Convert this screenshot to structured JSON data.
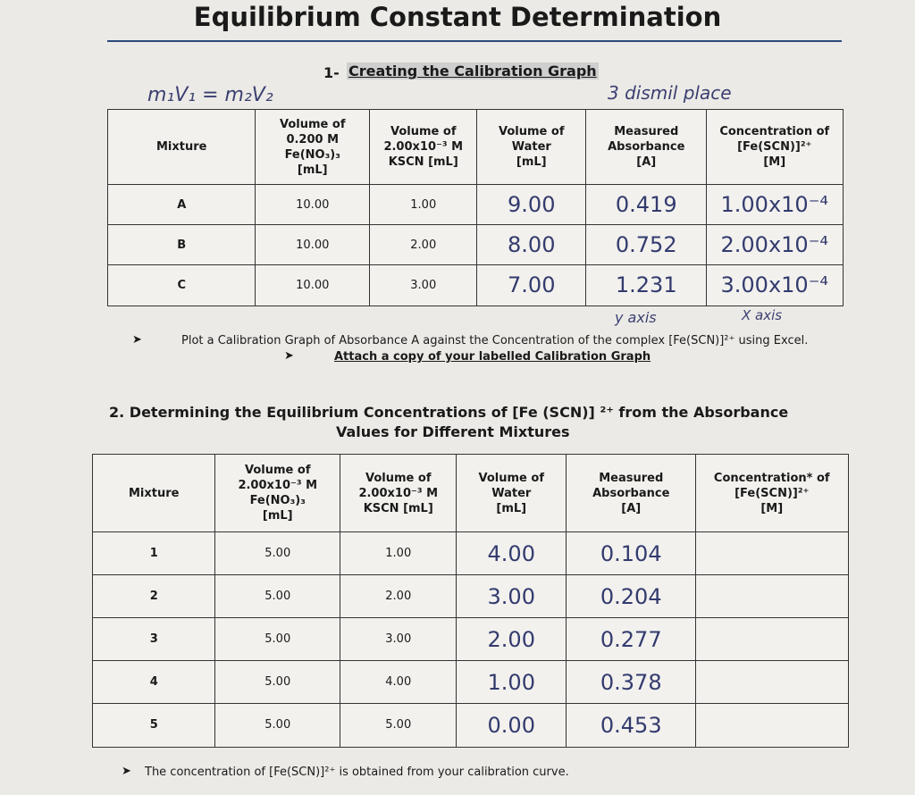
{
  "title": "Equilibrium Constant Determination",
  "section1": {
    "number": "1-",
    "heading": "Creating the Calibration Graph"
  },
  "notes": {
    "formula": "m₁V₁ = m₂V₂",
    "places": "3 dismil place",
    "y_axis": "y axis",
    "x_axis": "X axis"
  },
  "table1": {
    "headers": [
      [
        "Mixture"
      ],
      [
        "Volume of",
        "0.200 M",
        "Fe(NO₃)₃",
        "[mL]"
      ],
      [
        "Volume of",
        "2.00x10⁻³ M",
        "KSCN [mL]"
      ],
      [
        "Volume of",
        "Water",
        "[mL]"
      ],
      [
        "Measured",
        "Absorbance",
        "[A]"
      ],
      [
        "Concentration of",
        "[Fe(SCN)]²⁺",
        "[M]"
      ]
    ],
    "rows": [
      [
        "A",
        "10.00",
        "1.00",
        "9.00",
        "0.419",
        "1.00x10⁻⁴"
      ],
      [
        "B",
        "10.00",
        "2.00",
        "8.00",
        "0.752",
        "2.00x10⁻⁴"
      ],
      [
        "C",
        "10.00",
        "3.00",
        "7.00",
        "1.231",
        "3.00x10⁻⁴"
      ]
    ]
  },
  "bullets": [
    "Plot a Calibration Graph of Absorbance A against the Concentration of the complex [Fe(SCN)]²⁺ using Excel.",
    "Attach a copy of your labelled Calibration Graph"
  ],
  "section2": {
    "heading": [
      "2. Determining the Equilibrium Concentrations of [Fe (SCN)] ²⁺ from the Absorbance",
      "Values for Different Mixtures"
    ]
  },
  "table2": {
    "headers": [
      [
        "Mixture"
      ],
      [
        "Volume of",
        "2.00x10⁻³ M",
        "Fe(NO₃)₃",
        "[mL]"
      ],
      [
        "Volume of",
        "2.00x10⁻³ M",
        "KSCN [mL]"
      ],
      [
        "Volume of",
        "Water",
        "[mL]"
      ],
      [
        "Measured",
        "Absorbance",
        "[A]"
      ],
      [
        "Concentration* of",
        "[Fe(SCN)]²⁺",
        "[M]"
      ]
    ],
    "rows": [
      [
        "1",
        "5.00",
        "1.00",
        "4.00",
        "0.104"
      ],
      [
        "2",
        "5.00",
        "2.00",
        "3.00",
        "0.204"
      ],
      [
        "3",
        "5.00",
        "3.00",
        "2.00",
        "0.277"
      ],
      [
        "4",
        "5.00",
        "4.00",
        "1.00",
        "0.378"
      ],
      [
        "5",
        "5.00",
        "5.00",
        "0.00",
        "0.453"
      ]
    ]
  },
  "footnote": "The concentration of [Fe(SCN)]²⁺ is obtained from your calibration curve."
}
